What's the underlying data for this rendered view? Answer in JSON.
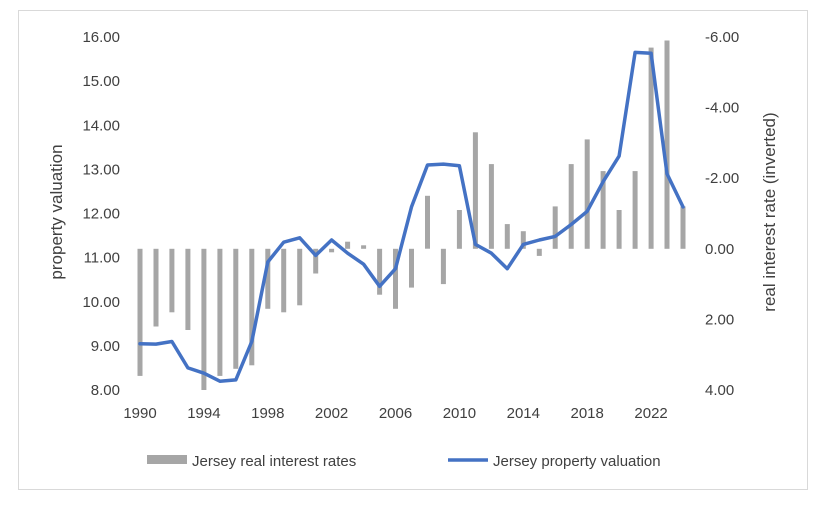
{
  "chart_data": {
    "type": "bar+line",
    "title": "",
    "xlabel": "",
    "ylabel_left": "property valuation",
    "ylabel_right": "real interest rate (inverted)",
    "x_ticks": [
      "1990",
      "1994",
      "1998",
      "2002",
      "2006",
      "2010",
      "2014",
      "2018",
      "2022"
    ],
    "left_axis": {
      "min": 8.0,
      "max": 16.0,
      "ticks": [
        "8.00",
        "9.00",
        "10.00",
        "11.00",
        "12.00",
        "13.00",
        "14.00",
        "15.00",
        "16.00"
      ]
    },
    "right_axis": {
      "inverted": true,
      "min": -6.0,
      "max": 4.0,
      "ticks": [
        "-6.00",
        "-4.00",
        "-2.00",
        "0.00",
        "2.00",
        "4.00"
      ]
    },
    "grid": false,
    "legend_position": "bottom",
    "years": [
      1990,
      1991,
      1992,
      1993,
      1994,
      1995,
      1996,
      1997,
      1998,
      1999,
      2000,
      2001,
      2002,
      2003,
      2004,
      2005,
      2006,
      2007,
      2008,
      2009,
      2010,
      2011,
      2012,
      2013,
      2014,
      2015,
      2016,
      2017,
      2018,
      2019,
      2020,
      2021,
      2022,
      2023,
      2024
    ],
    "series": [
      {
        "name": "Jersey real interest rates",
        "type": "bar",
        "axis": "right",
        "color": "#a6a6a6",
        "values": [
          3.6,
          2.2,
          1.8,
          2.3,
          4.0,
          3.6,
          3.4,
          3.3,
          1.7,
          1.8,
          1.6,
          0.7,
          0.1,
          -0.2,
          -0.1,
          1.3,
          1.7,
          1.1,
          -1.5,
          1.0,
          -1.1,
          -3.3,
          -2.4,
          -0.7,
          -0.5,
          0.2,
          -1.2,
          -2.4,
          -3.1,
          -2.2,
          -1.1,
          -2.2,
          -5.7,
          -5.9,
          -1.2
        ]
      },
      {
        "name": "Jersey property valuation",
        "type": "line",
        "axis": "left",
        "color": "#4472c4",
        "values": [
          9.05,
          9.04,
          9.1,
          8.5,
          8.38,
          8.2,
          8.23,
          9.1,
          10.9,
          11.35,
          11.45,
          11.05,
          11.4,
          11.1,
          10.85,
          10.35,
          10.75,
          12.15,
          13.1,
          13.12,
          13.08,
          11.3,
          11.1,
          10.75,
          11.3,
          11.4,
          11.48,
          11.75,
          12.05,
          12.72,
          13.3,
          15.65,
          15.63,
          12.9,
          12.15
        ]
      }
    ]
  }
}
